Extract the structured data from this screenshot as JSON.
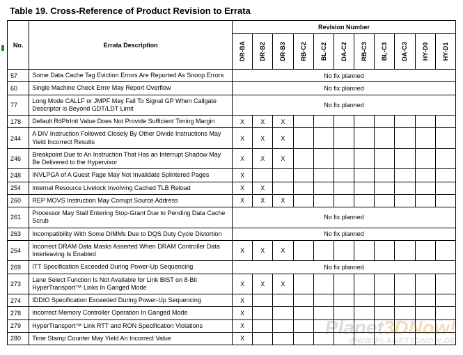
{
  "title": "Table 19.    Cross-Reference of Product Revision to Errata",
  "columns": {
    "no": "No.",
    "desc": "Errata Description",
    "revnum": "Revision Number"
  },
  "revisions": [
    "DR-BA",
    "DR-B2",
    "DR-B3",
    "RB-C2",
    "BL-C2",
    "DA-C2",
    "RB-C3",
    "BL-C3",
    "DA-C3",
    "HY-D0",
    "HY-D1"
  ],
  "nofix": "No fix planned",
  "rows": [
    {
      "no": "57",
      "desc": "Some Data Cache Tag Eviction Errors Are Reported As Snoop Errors",
      "cells": null
    },
    {
      "no": "60",
      "desc": "Single Machine Check Error May Report Overflow",
      "cells": null
    },
    {
      "no": "77",
      "desc": "Long Mode CALLF or JMPF May Fail To Signal GP When Callgate Descriptor is Beyond GDT/LDT Limit",
      "cells": null
    },
    {
      "no": "178",
      "desc": "Default RdPtrInit Value Does Not Provide Sufficient Timing Margin",
      "cells": [
        "X",
        "X",
        "X",
        "",
        "",
        "",
        "",
        "",
        "",
        "",
        ""
      ]
    },
    {
      "no": "244",
      "desc": "A DIV Instruction Followed Closely By Other Divide Instructions May Yield Incorrect Results",
      "cells": [
        "X",
        "X",
        "X",
        "",
        "",
        "",
        "",
        "",
        "",
        "",
        ""
      ]
    },
    {
      "no": "246",
      "desc": "Breakpoint Due to An Instruction That Has an Interrupt Shadow May Be Delivered to the Hypervisor",
      "cells": [
        "X",
        "X",
        "X",
        "",
        "",
        "",
        "",
        "",
        "",
        "",
        ""
      ]
    },
    {
      "no": "248",
      "desc": "INVLPGA of A Guest Page May Not Invalidate Splintered Pages",
      "cells": [
        "X",
        "",
        "",
        "",
        "",
        "",
        "",
        "",
        "",
        "",
        ""
      ]
    },
    {
      "no": "254",
      "desc": "Internal Resource Livelock Involving Cached TLB Reload",
      "cells": [
        "X",
        "X",
        "",
        "",
        "",
        "",
        "",
        "",
        "",
        "",
        ""
      ]
    },
    {
      "no": "260",
      "desc": "REP MOVS Instruction May Corrupt Source Address",
      "cells": [
        "X",
        "X",
        "X",
        "",
        "",
        "",
        "",
        "",
        "",
        "",
        ""
      ]
    },
    {
      "no": "261",
      "desc": "Processor May Stall Entering Stop-Grant Due to Pending Data Cache Scrub",
      "cells": null
    },
    {
      "no": "263",
      "desc": "Incompatibility With Some DIMMs Due to DQS Duty Cycle Distortion",
      "cells": null
    },
    {
      "no": "264",
      "desc": "Incorrect DRAM Data Masks Asserted When DRAM Controller Data Interleaving Is Enabled",
      "cells": [
        "X",
        "X",
        "X",
        "",
        "",
        "",
        "",
        "",
        "",
        "",
        ""
      ]
    },
    {
      "no": "269",
      "desc": "ITT Specification Exceeded During Power-Up Sequencing",
      "cells": null
    },
    {
      "no": "273",
      "desc": "Lane Select Function Is Not Available for Link BIST on 8-Bit HyperTransport™ Links In Ganged Mode",
      "cells": [
        "X",
        "X",
        "X",
        "",
        "",
        "",
        "",
        "",
        "",
        "",
        ""
      ]
    },
    {
      "no": "274",
      "desc": "IDDIO Specification Exceeded During Power-Up Sequencing",
      "cells": [
        "X",
        "",
        "",
        "",
        "",
        "",
        "",
        "",
        "",
        "",
        ""
      ]
    },
    {
      "no": "278",
      "desc": "Incorrect Memory Controller Operation In Ganged Mode",
      "cells": [
        "X",
        "",
        "",
        "",
        "",
        "",
        "",
        "",
        "",
        "",
        ""
      ]
    },
    {
      "no": "279",
      "desc": "HyperTransport™ Link RTT and RON Specification Violations",
      "cells": [
        "X",
        "",
        "",
        "",
        "",
        "",
        "",
        "",
        "",
        "",
        ""
      ]
    },
    {
      "no": "280",
      "desc": "Time Stamp Counter May Yield An Incorrect Value",
      "cells": [
        "X",
        "",
        "",
        "",
        "",
        "",
        "",
        "",
        "",
        "",
        ""
      ]
    }
  ],
  "watermark": {
    "line1a": "Planet",
    "line1b": "3DNow!",
    "line2": "WWW.PLANET3DNOW.DE"
  }
}
